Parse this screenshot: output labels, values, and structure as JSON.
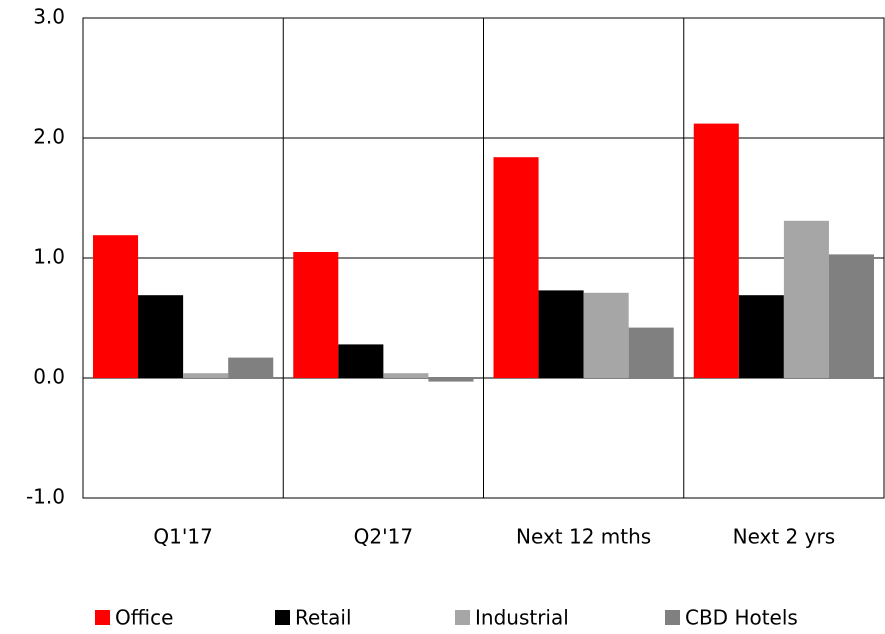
{
  "chart_data": {
    "type": "bar",
    "categories": [
      "Q1'17",
      "Q2'17",
      "Next 12 mths",
      "Next 2 yrs"
    ],
    "series": [
      {
        "name": "Office",
        "color": "#ff0000",
        "values": [
          1.19,
          1.05,
          1.84,
          2.12
        ]
      },
      {
        "name": "Retail",
        "color": "#000000",
        "values": [
          0.69,
          0.28,
          0.73,
          0.69
        ]
      },
      {
        "name": "Industrial",
        "color": "#a6a6a6",
        "values": [
          0.04,
          0.04,
          0.71,
          1.31
        ]
      },
      {
        "name": "CBD Hotels",
        "color": "#808080",
        "values": [
          0.17,
          -0.03,
          0.42,
          1.03
        ]
      }
    ],
    "ylim": [
      -1,
      3
    ],
    "yticks": [
      {
        "value": -1,
        "label": "-1.0"
      },
      {
        "value": 0,
        "label": "0.0"
      },
      {
        "value": 1,
        "label": "1.0"
      },
      {
        "value": 2,
        "label": "2.0"
      },
      {
        "value": 3,
        "label": "3.0"
      }
    ],
    "grid": true,
    "legend": "bottom"
  }
}
